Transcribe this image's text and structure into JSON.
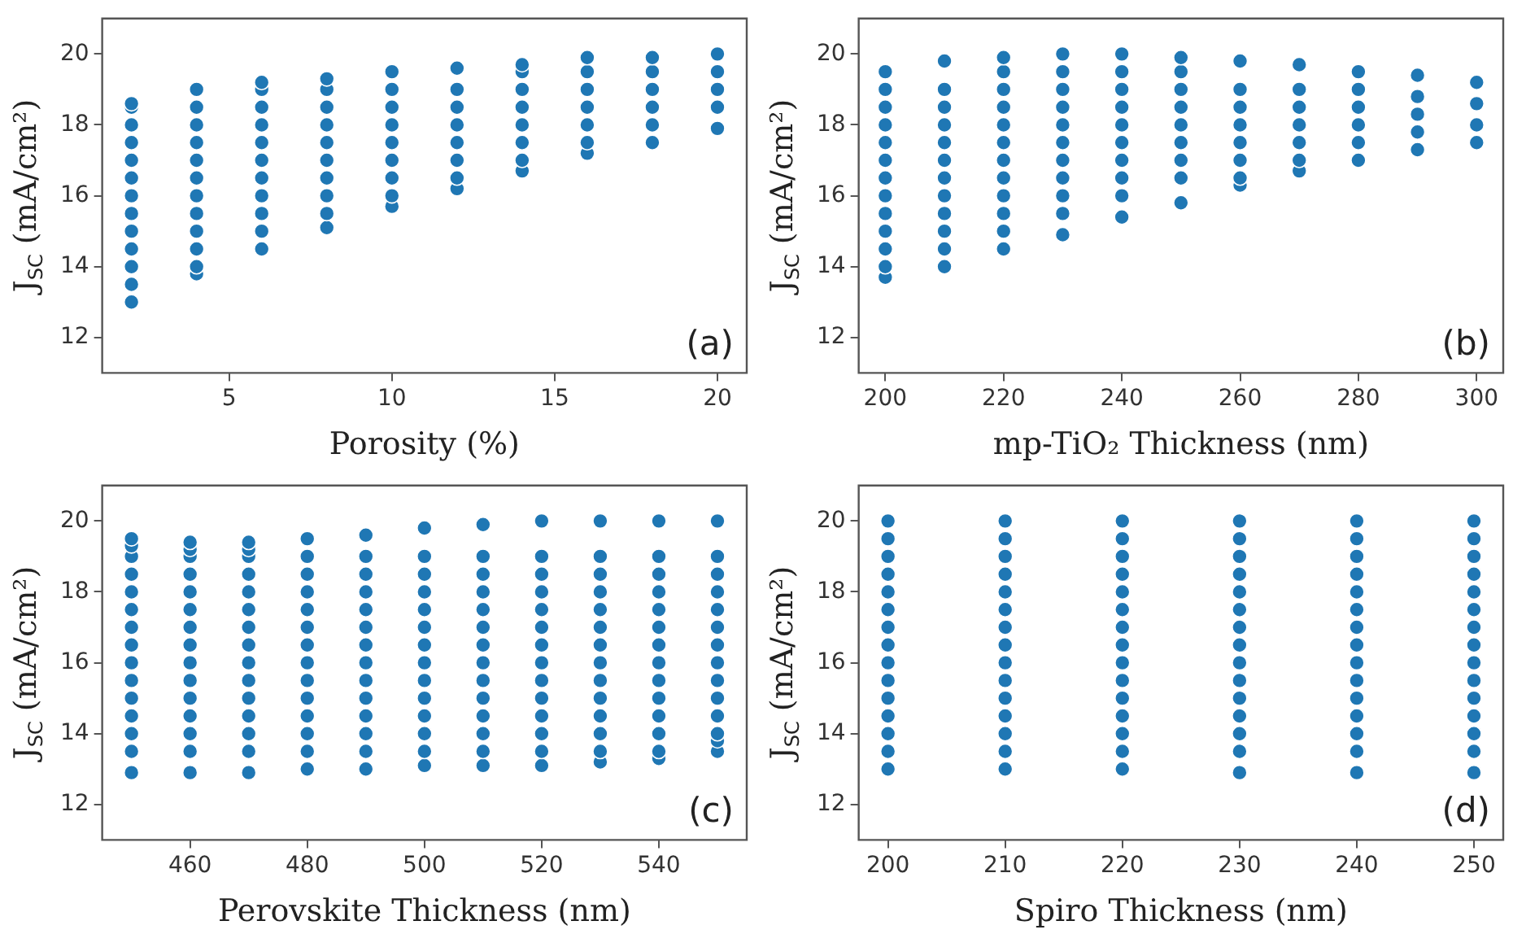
{
  "chart_data": [
    {
      "type": "scatter",
      "xlabel": "Porosity (%)",
      "ylabel": "J$_{SC}$ (mA/cm²)",
      "annotations": [
        "(a)"
      ],
      "marker": "circle",
      "xlim": [
        1.1,
        20.9
      ],
      "xticks": [
        5,
        10,
        15,
        20
      ],
      "ylim": [
        11,
        21
      ],
      "yticks": [
        12,
        14,
        16,
        18,
        20
      ],
      "series": [
        {
          "color": "#1f77b4",
          "x": [
            2,
            2,
            2,
            2,
            2,
            2,
            2,
            2,
            2,
            2,
            2,
            2,
            2,
            4,
            4,
            4,
            4,
            4,
            4,
            4,
            4,
            4,
            4,
            4,
            4,
            6,
            6,
            6,
            6,
            6,
            6,
            6,
            6,
            6,
            6,
            6,
            8,
            8,
            8,
            8,
            8,
            8,
            8,
            8,
            8,
            8,
            10,
            10,
            10,
            10,
            10,
            10,
            10,
            10,
            10,
            12,
            12,
            12,
            12,
            12,
            12,
            12,
            12,
            14,
            14,
            14,
            14,
            14,
            14,
            14,
            14,
            16,
            16,
            16,
            16,
            16,
            16,
            16,
            18,
            18,
            18,
            18,
            18,
            18,
            20,
            20,
            20,
            20,
            20
          ],
          "values": [
            13,
            13.5,
            14,
            14.5,
            15,
            15.5,
            16,
            16.5,
            17,
            17.5,
            18,
            18.5,
            18.6,
            13.8,
            14,
            14.5,
            15,
            15.5,
            16,
            16.5,
            17,
            17.5,
            18,
            18.5,
            19,
            14.5,
            15,
            15.5,
            16,
            16.5,
            17,
            17.5,
            18,
            18.5,
            19,
            19.2,
            15.1,
            15.5,
            16,
            16.5,
            17,
            17.5,
            18,
            18.5,
            19,
            19.3,
            15.7,
            16,
            16.5,
            17,
            17.5,
            18,
            18.5,
            19,
            19.5,
            16.2,
            16.5,
            17,
            17.5,
            18,
            18.5,
            19,
            19.6,
            16.7,
            17,
            17.5,
            18,
            18.5,
            19,
            19.5,
            19.7,
            17.2,
            17.5,
            18,
            18.5,
            19,
            19.5,
            19.9,
            17.5,
            18,
            18.5,
            19,
            19.5,
            19.9,
            17.9,
            18.5,
            19,
            19.5,
            20
          ]
        }
      ]
    },
    {
      "type": "scatter",
      "xlabel": "mp-TiO₂ Thickness (nm)",
      "ylabel": "J$_{SC}$ (mA/cm²)",
      "annotations": [
        "(b)"
      ],
      "marker": "circle",
      "xlim": [
        195.5,
        304.5
      ],
      "xticks": [
        200,
        220,
        240,
        260,
        280,
        300
      ],
      "ylim": [
        11,
        21
      ],
      "yticks": [
        12,
        14,
        16,
        18,
        20
      ],
      "series": [
        {
          "color": "#1f77b4",
          "x": [
            200,
            200,
            200,
            200,
            200,
            200,
            200,
            200,
            200,
            200,
            200,
            200,
            200,
            210,
            210,
            210,
            210,
            210,
            210,
            210,
            210,
            210,
            210,
            210,
            210,
            220,
            220,
            220,
            220,
            220,
            220,
            220,
            220,
            220,
            220,
            220,
            220,
            230,
            230,
            230,
            230,
            230,
            230,
            230,
            230,
            230,
            230,
            230,
            240,
            240,
            240,
            240,
            240,
            240,
            240,
            240,
            240,
            240,
            250,
            250,
            250,
            250,
            250,
            250,
            250,
            250,
            250,
            260,
            260,
            260,
            260,
            260,
            260,
            260,
            260,
            270,
            270,
            270,
            270,
            270,
            270,
            270,
            280,
            280,
            280,
            280,
            280,
            280,
            290,
            290,
            290,
            290,
            290,
            300,
            300,
            300,
            300
          ],
          "values": [
            13.7,
            14,
            14.5,
            15,
            15.5,
            16,
            16.5,
            17,
            17.5,
            18,
            18.5,
            19,
            19.5,
            14,
            14.5,
            15,
            15.5,
            16,
            16.5,
            17,
            17.5,
            18,
            18.5,
            19,
            19.8,
            14.5,
            15,
            15.5,
            16,
            16.5,
            17,
            17.5,
            18,
            18.5,
            19,
            19.5,
            19.9,
            14.9,
            15.5,
            16,
            16.5,
            17,
            17.5,
            18,
            18.5,
            19,
            19.5,
            20,
            15.4,
            16,
            16.5,
            17,
            17.5,
            18,
            18.5,
            19,
            19.5,
            20,
            15.8,
            16.5,
            17,
            17.5,
            18,
            18.5,
            19,
            19.5,
            19.9,
            16.3,
            16.5,
            17,
            17.5,
            18,
            18.5,
            19,
            19.8,
            16.7,
            17,
            17.5,
            18,
            18.5,
            19,
            19.7,
            17,
            17.5,
            18,
            18.5,
            19,
            19.5,
            17.3,
            17.8,
            18.3,
            18.8,
            19.4,
            17.5,
            18,
            18.6,
            19.2
          ]
        }
      ]
    },
    {
      "type": "scatter",
      "xlabel": "Perovskite Thickness (nm)",
      "ylabel": "J$_{SC}$ (mA/cm²)",
      "annotations": [
        "(c)"
      ],
      "marker": "circle",
      "xlim": [
        445,
        555
      ],
      "xticks": [
        460,
        480,
        500,
        520,
        540
      ],
      "ylim": [
        11,
        21
      ],
      "yticks": [
        12,
        14,
        16,
        18,
        20
      ],
      "series": [
        {
          "color": "#1f77b4",
          "x": [
            450,
            450,
            450,
            450,
            450,
            450,
            450,
            450,
            450,
            450,
            450,
            450,
            450,
            450,
            450,
            460,
            460,
            460,
            460,
            460,
            460,
            460,
            460,
            460,
            460,
            460,
            460,
            460,
            460,
            460,
            470,
            470,
            470,
            470,
            470,
            470,
            470,
            470,
            470,
            470,
            470,
            470,
            470,
            470,
            470,
            480,
            480,
            480,
            480,
            480,
            480,
            480,
            480,
            480,
            480,
            480,
            480,
            480,
            480,
            490,
            490,
            490,
            490,
            490,
            490,
            490,
            490,
            490,
            490,
            490,
            490,
            490,
            490,
            500,
            500,
            500,
            500,
            500,
            500,
            500,
            500,
            500,
            500,
            500,
            500,
            500,
            500,
            510,
            510,
            510,
            510,
            510,
            510,
            510,
            510,
            510,
            510,
            510,
            510,
            510,
            510,
            520,
            520,
            520,
            520,
            520,
            520,
            520,
            520,
            520,
            520,
            520,
            520,
            520,
            520,
            530,
            530,
            530,
            530,
            530,
            530,
            530,
            530,
            530,
            530,
            530,
            530,
            530,
            530,
            540,
            540,
            540,
            540,
            540,
            540,
            540,
            540,
            540,
            540,
            540,
            540,
            540,
            540,
            550,
            550,
            550,
            550,
            550,
            550,
            550,
            550,
            550,
            550,
            550,
            550,
            550,
            550
          ],
          "values": [
            12.9,
            13.5,
            14,
            14.5,
            15,
            15.5,
            16,
            16.5,
            17,
            17.5,
            18,
            18.5,
            19,
            19.3,
            19.5,
            12.9,
            13.5,
            14,
            14.5,
            15,
            15.5,
            16,
            16.5,
            17,
            17.5,
            18,
            18.5,
            19,
            19.2,
            19.4,
            12.9,
            13.5,
            14,
            14.5,
            15,
            15.5,
            16,
            16.5,
            17,
            17.5,
            18,
            18.5,
            19,
            19.2,
            19.4,
            13,
            13.5,
            14,
            14.5,
            15,
            15.5,
            16,
            16.5,
            17,
            17.5,
            18,
            18.5,
            19,
            19.5,
            13,
            13.5,
            14,
            14.5,
            15,
            15.5,
            16,
            16.5,
            17,
            17.5,
            18,
            18.5,
            19,
            19.6,
            13.1,
            13.5,
            14,
            14.5,
            15,
            15.5,
            16,
            16.5,
            17,
            17.5,
            18,
            18.5,
            19,
            19.8,
            13.1,
            13.5,
            14,
            14.5,
            15,
            15.5,
            16,
            16.5,
            17,
            17.5,
            18,
            18.5,
            19,
            19.9,
            13.1,
            13.5,
            14,
            14.5,
            15,
            15.5,
            16,
            16.5,
            17,
            17.5,
            18,
            18.5,
            19,
            20,
            13.2,
            13.5,
            14,
            14.5,
            15,
            15.5,
            16,
            16.5,
            17,
            17.5,
            18,
            18.5,
            19,
            20,
            13.3,
            13.5,
            14,
            14.5,
            15,
            15.5,
            16,
            16.5,
            17,
            17.5,
            18,
            18.5,
            19,
            20,
            13.5,
            13.8,
            14,
            14.5,
            15,
            15.5,
            16,
            16.5,
            17,
            17.5,
            18,
            18.5,
            19,
            20
          ]
        }
      ]
    },
    {
      "type": "scatter",
      "xlabel": "Spiro Thickness (nm)",
      "ylabel": "J$_{SC}$ (mA/cm²)",
      "annotations": [
        "(d)"
      ],
      "marker": "circle",
      "xlim": [
        197.5,
        252.5
      ],
      "xticks": [
        200,
        210,
        220,
        230,
        240,
        250
      ],
      "ylim": [
        11,
        21
      ],
      "yticks": [
        12,
        14,
        16,
        18,
        20
      ],
      "series": [
        {
          "color": "#1f77b4",
          "x": [
            200,
            200,
            200,
            200,
            200,
            200,
            200,
            200,
            200,
            200,
            200,
            200,
            200,
            200,
            200,
            210,
            210,
            210,
            210,
            210,
            210,
            210,
            210,
            210,
            210,
            210,
            210,
            210,
            210,
            210,
            220,
            220,
            220,
            220,
            220,
            220,
            220,
            220,
            220,
            220,
            220,
            220,
            220,
            220,
            220,
            230,
            230,
            230,
            230,
            230,
            230,
            230,
            230,
            230,
            230,
            230,
            230,
            230,
            230,
            230,
            240,
            240,
            240,
            240,
            240,
            240,
            240,
            240,
            240,
            240,
            240,
            240,
            240,
            240,
            240,
            250,
            250,
            250,
            250,
            250,
            250,
            250,
            250,
            250,
            250,
            250,
            250,
            250,
            250,
            250
          ],
          "values": [
            13,
            13.5,
            14,
            14.5,
            15,
            15.5,
            16,
            16.5,
            17,
            17.5,
            18,
            18.5,
            19,
            19.5,
            20,
            13,
            13.5,
            14,
            14.5,
            15,
            15.5,
            16,
            16.5,
            17,
            17.5,
            18,
            18.5,
            19,
            19.5,
            20,
            13,
            13.5,
            14,
            14.5,
            15,
            15.5,
            16,
            16.5,
            17,
            17.5,
            18,
            18.5,
            19,
            19.5,
            20,
            12.9,
            13.5,
            14,
            14.5,
            15,
            15.5,
            16,
            16.5,
            17,
            17.5,
            18,
            18.5,
            19,
            19.5,
            20,
            12.9,
            13.5,
            14,
            14.5,
            15,
            15.5,
            16,
            16.5,
            17,
            17.5,
            18,
            18.5,
            19,
            19.5,
            20,
            12.9,
            13.5,
            14,
            14.5,
            15,
            15.5,
            16,
            16.5,
            17,
            17.5,
            18,
            18.5,
            19,
            19.5,
            20
          ]
        }
      ]
    }
  ]
}
